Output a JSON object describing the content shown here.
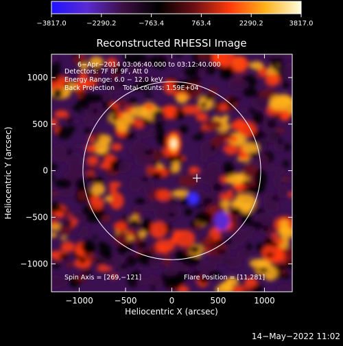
{
  "colorbar": {
    "ticks": [
      -3817.0,
      -2290.2,
      -763.4,
      763.4,
      2290.2,
      3817.0
    ],
    "tick_labels": [
      "−3817.0",
      "−2290.2",
      "−763.4",
      "763.4",
      "2290.2",
      "3817.0"
    ],
    "stops": [
      "#1f12ff",
      "#5a2bd2",
      "#3d0f44",
      "#000000",
      "#6b0f14",
      "#ff3a0a",
      "#ffb21a",
      "#fffde0"
    ]
  },
  "chart_data": {
    "type": "heatmap",
    "title": "Reconstructed RHESSI Image",
    "xlabel": "Heliocentric X (arcsec)",
    "ylabel": "Heliocentric Y (arcsec)",
    "xlim": [
      -1300,
      1300
    ],
    "ylim": [
      -1300,
      1250
    ],
    "xticks": [
      -1000,
      -500,
      0,
      500,
      1000
    ],
    "yticks": [
      -1000,
      -500,
      0,
      500,
      1000
    ],
    "xtick_labels": [
      "−1000",
      "−500",
      "0",
      "500",
      "1000"
    ],
    "ytick_labels": [
      "−1000",
      "−500",
      "0",
      "500",
      "1000"
    ],
    "value_range": [
      -3817.0,
      3817.0
    ],
    "solar_limb_radius_arcsec": 960,
    "solar_limb_center": [
      0,
      0
    ],
    "flare_position": [
      11,
      281
    ],
    "crosshair_position": [
      270,
      -80
    ],
    "spin_axis": [
      269,
      -121
    ],
    "peak_source": {
      "x": 20,
      "y": 290,
      "value": 3817.0
    },
    "annotations": [
      "6−Apr−2014 03:06:40.000 to 03:12:40.000",
      "Detectors: 7F 8F 9F, Att 0",
      "Energy Range: 6.0 − 12.0 keV",
      "Back Projection    Total counts: 1.59E+04"
    ],
    "footer_left": "Spin Axis = [269,−121]",
    "footer_right": "Flare Position = [11,281]"
  },
  "timestamp": "14−May−2022 11:02"
}
